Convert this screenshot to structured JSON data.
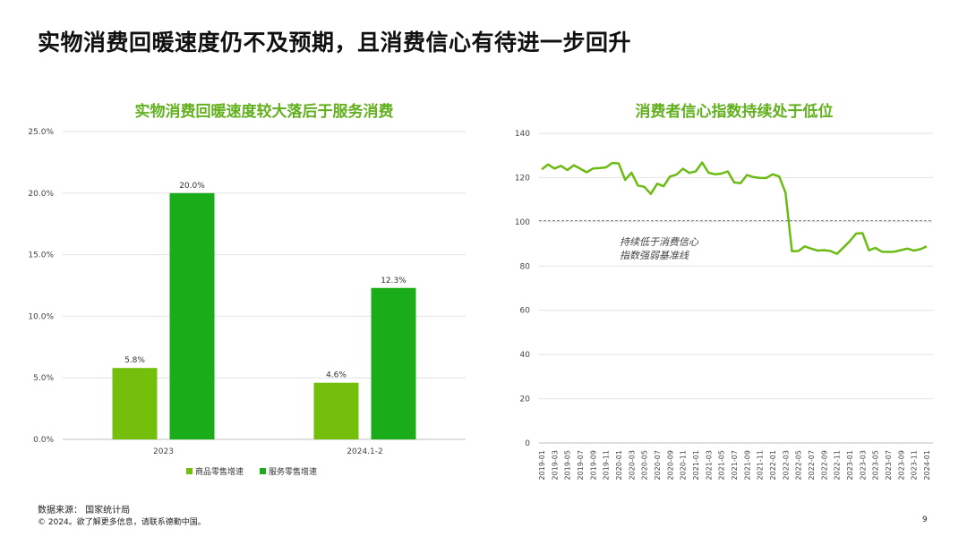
{
  "page": {
    "title": "实物消费回暖速度仍不及预期，且消费信心有待进一步回升",
    "source": "数据来源： 国家统计局",
    "copyright": "© 2024。欲了解更多信息，请联系德勤中国。",
    "page_number": "9"
  },
  "colors": {
    "accent_light": "#74bf0c",
    "accent_dark": "#1aad19",
    "line": "#6cbb14",
    "title_green": "#62b01e"
  },
  "chart_data": [
    {
      "type": "bar",
      "title": "实物消费回暖速度较大落后于服务消费",
      "categories": [
        "2023",
        "2024.1-2"
      ],
      "series": [
        {
          "name": "商品零售增速",
          "values": [
            5.8,
            4.6
          ],
          "labels": [
            "5.8%",
            "4.6%"
          ]
        },
        {
          "name": "服务零售增速",
          "values": [
            20.0,
            12.3
          ],
          "labels": [
            "20.0%",
            "12.3%"
          ]
        }
      ],
      "ylim": [
        0,
        25
      ],
      "yticks": [
        "0.0%",
        "5.0%",
        "10.0%",
        "15.0%",
        "20.0%",
        "25.0%"
      ],
      "legend": "bottom",
      "grid": true
    },
    {
      "type": "line",
      "title": "消费者信心指数持续处于低位",
      "x": [
        "2019-01",
        "2019-02",
        "2019-03",
        "2019-04",
        "2019-05",
        "2019-06",
        "2019-07",
        "2019-08",
        "2019-09",
        "2019-10",
        "2019-11",
        "2019-12",
        "2020-01",
        "2020-02",
        "2020-03",
        "2020-04",
        "2020-05",
        "2020-06",
        "2020-07",
        "2020-08",
        "2020-09",
        "2020-10",
        "2020-11",
        "2020-12",
        "2021-01",
        "2021-02",
        "2021-03",
        "2021-04",
        "2021-05",
        "2021-06",
        "2021-07",
        "2021-08",
        "2021-09",
        "2021-10",
        "2021-11",
        "2021-12",
        "2022-01",
        "2022-02",
        "2022-03",
        "2022-04",
        "2022-05",
        "2022-06",
        "2022-07",
        "2022-08",
        "2022-09",
        "2022-10",
        "2022-11",
        "2022-12",
        "2023-01",
        "2023-02",
        "2023-03",
        "2023-04",
        "2023-05",
        "2023-06",
        "2023-07",
        "2023-08",
        "2023-09",
        "2023-10",
        "2023-11",
        "2023-12",
        "2024-01"
      ],
      "xticks": [
        "2019-01",
        "2019-03",
        "2019-05",
        "2019-07",
        "2019-09",
        "2019-11",
        "2020-01",
        "2020-03",
        "2020-05",
        "2020-07",
        "2020-09",
        "2020-11",
        "2021-01",
        "2021-03",
        "2021-05",
        "2021-07",
        "2021-09",
        "2021-11",
        "2022-01",
        "2022-03",
        "2022-05",
        "2022-07",
        "2022-09",
        "2022-11",
        "2023-01",
        "2023-03",
        "2023-05",
        "2023-07",
        "2023-09",
        "2023-11",
        "2024-01"
      ],
      "values": [
        123.7,
        125.9,
        124.1,
        125.3,
        123.4,
        125.6,
        124.0,
        122.4,
        124.1,
        124.3,
        124.6,
        126.6,
        126.4,
        118.9,
        122.2,
        116.4,
        115.8,
        112.6,
        117.2,
        116.1,
        120.5,
        121.3,
        124.0,
        122.1,
        122.8,
        126.8,
        122.2,
        121.5,
        121.8,
        122.8,
        117.8,
        117.5,
        121.2,
        120.2,
        119.8,
        119.8,
        121.5,
        120.5,
        113.2,
        86.7,
        86.8,
        88.9,
        87.9,
        87.0,
        87.2,
        86.8,
        85.5,
        88.3,
        91.2,
        94.7,
        94.9,
        87.1,
        88.2,
        86.5,
        86.4,
        86.5,
        87.2,
        87.9,
        87.0,
        87.6,
        88.9
      ],
      "reference_line": 100.5,
      "annotation": [
        "持续低于消费信心",
        "指数强弱基准线"
      ],
      "ylim": [
        0,
        140
      ],
      "yticks": [
        "0",
        "20",
        "40",
        "60",
        "80",
        "100",
        "120",
        "140"
      ],
      "grid": true
    }
  ]
}
